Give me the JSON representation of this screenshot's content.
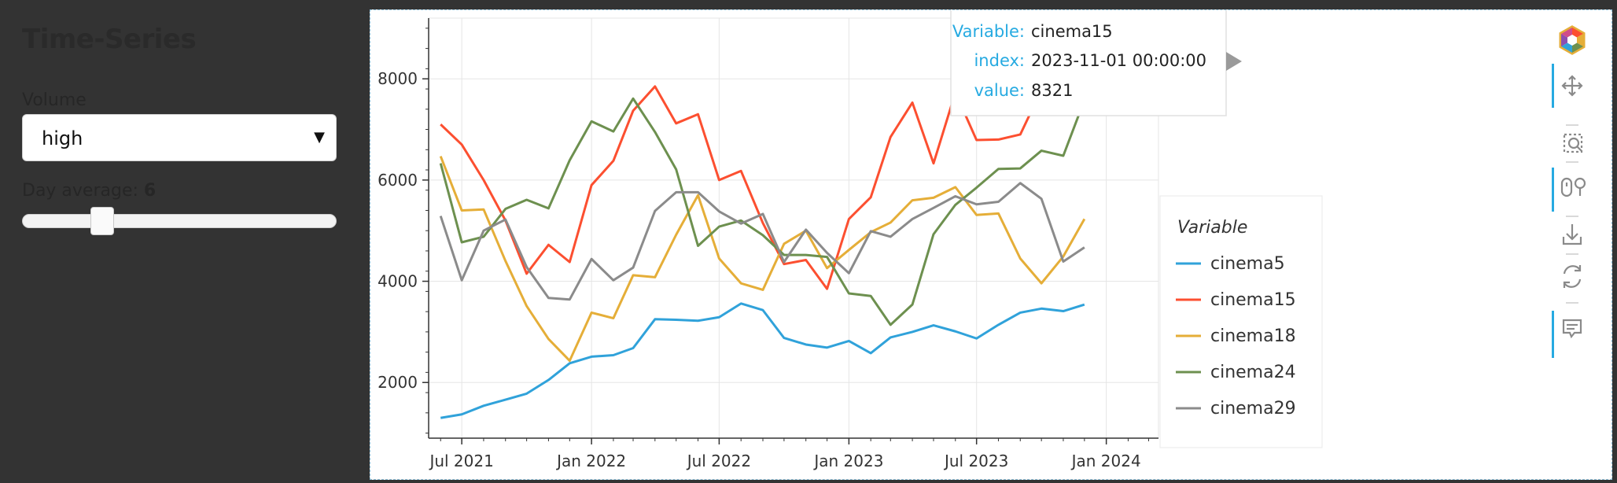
{
  "sidebar": {
    "title": "Time-Series",
    "volume_label": "Volume",
    "volume_value": "high",
    "day_average_label": "Day average: ",
    "day_average_value": "6",
    "slider_value": 6
  },
  "tooltip": {
    "variable_key": "Variable:",
    "variable_val": "cinema15",
    "index_key": "index:",
    "index_val": "2023-11-01 00:00:00",
    "value_key": "value:",
    "value_val": "8321"
  },
  "toolbar": {
    "icons": [
      "bokeh-logo-icon",
      "pan-icon",
      "box-zoom-icon",
      "wheel-zoom-icon",
      "save-icon",
      "reset-icon",
      "hover-icon"
    ]
  },
  "chart_data": {
    "type": "line",
    "title": "",
    "xlabel": "",
    "ylabel": "",
    "x": [
      "2021-06",
      "2021-07",
      "2021-08",
      "2021-09",
      "2021-10",
      "2021-11",
      "2021-12",
      "2022-01",
      "2022-02",
      "2022-03",
      "2022-04",
      "2022-05",
      "2022-06",
      "2022-07",
      "2022-08",
      "2022-09",
      "2022-10",
      "2022-11",
      "2022-12",
      "2023-01",
      "2023-02",
      "2023-03",
      "2023-04",
      "2023-05",
      "2023-06",
      "2023-07",
      "2023-08",
      "2023-09",
      "2023-10",
      "2023-11",
      "2023-12"
    ],
    "xlim": [
      "2021-05-15",
      "2024-03-15"
    ],
    "ylim": [
      900,
      9200
    ],
    "x_ticks": [
      "Jul 2021",
      "Jan 2022",
      "Jul 2022",
      "Jan 2023",
      "Jul 2023",
      "Jan 2024"
    ],
    "x_tick_dates": [
      "2021-07-01",
      "2022-01-01",
      "2022-07-01",
      "2023-01-01",
      "2023-07-01",
      "2024-01-01"
    ],
    "y_ticks": [
      2000,
      4000,
      6000,
      8000
    ],
    "y_tick_labels": [
      "2000",
      "4000",
      "6000",
      "8000"
    ],
    "grid": true,
    "legend_title": "Variable",
    "legend_position": "right",
    "series": [
      {
        "name": "cinema5",
        "color": "#30a2da",
        "values": [
          1300,
          1370,
          1540,
          1660,
          1780,
          2050,
          2380,
          2510,
          2540,
          2680,
          3250,
          3240,
          3220,
          3290,
          3560,
          3430,
          2880,
          2750,
          2690,
          2820,
          2580,
          2890,
          3000,
          3130,
          3010,
          2870,
          3140,
          3380,
          3460,
          3410,
          3540
        ]
      },
      {
        "name": "cinema15",
        "color": "#fc4f30",
        "values": [
          7100,
          6700,
          6000,
          5200,
          4150,
          4720,
          4380,
          5900,
          6380,
          7370,
          7850,
          7120,
          7300,
          6000,
          6180,
          5150,
          4340,
          4420,
          3850,
          5230,
          5660,
          6850,
          7530,
          6330,
          7730,
          6790,
          6800,
          6900,
          7780,
          8321,
          7320
        ]
      },
      {
        "name": "cinema18",
        "color": "#e5ae38",
        "values": [
          6470,
          5400,
          5420,
          4400,
          3510,
          2860,
          2430,
          3380,
          3270,
          4120,
          4080,
          4920,
          5700,
          4450,
          3960,
          3830,
          4740,
          5000,
          4260,
          4620,
          4970,
          5160,
          5600,
          5650,
          5860,
          5310,
          5340,
          4450,
          3960,
          4490,
          5230
        ]
      },
      {
        "name": "cinema24",
        "color": "#6d904f",
        "values": [
          6330,
          4770,
          4880,
          5430,
          5610,
          5440,
          6390,
          7160,
          6960,
          7610,
          6950,
          6210,
          4700,
          5080,
          5200,
          4910,
          4520,
          4520,
          4480,
          3760,
          3710,
          3140,
          3540,
          4930,
          5510,
          5850,
          6220,
          6230,
          6580,
          6480,
          7580
        ]
      },
      {
        "name": "cinema29",
        "color": "#8b8b8b",
        "values": [
          5290,
          4020,
          5000,
          5220,
          4280,
          3670,
          3640,
          4440,
          4020,
          4270,
          5390,
          5760,
          5760,
          5380,
          5140,
          5330,
          4380,
          5020,
          4560,
          4160,
          4990,
          4880,
          5230,
          5450,
          5680,
          5520,
          5570,
          5940,
          5630,
          4390,
          4670
        ]
      }
    ]
  }
}
